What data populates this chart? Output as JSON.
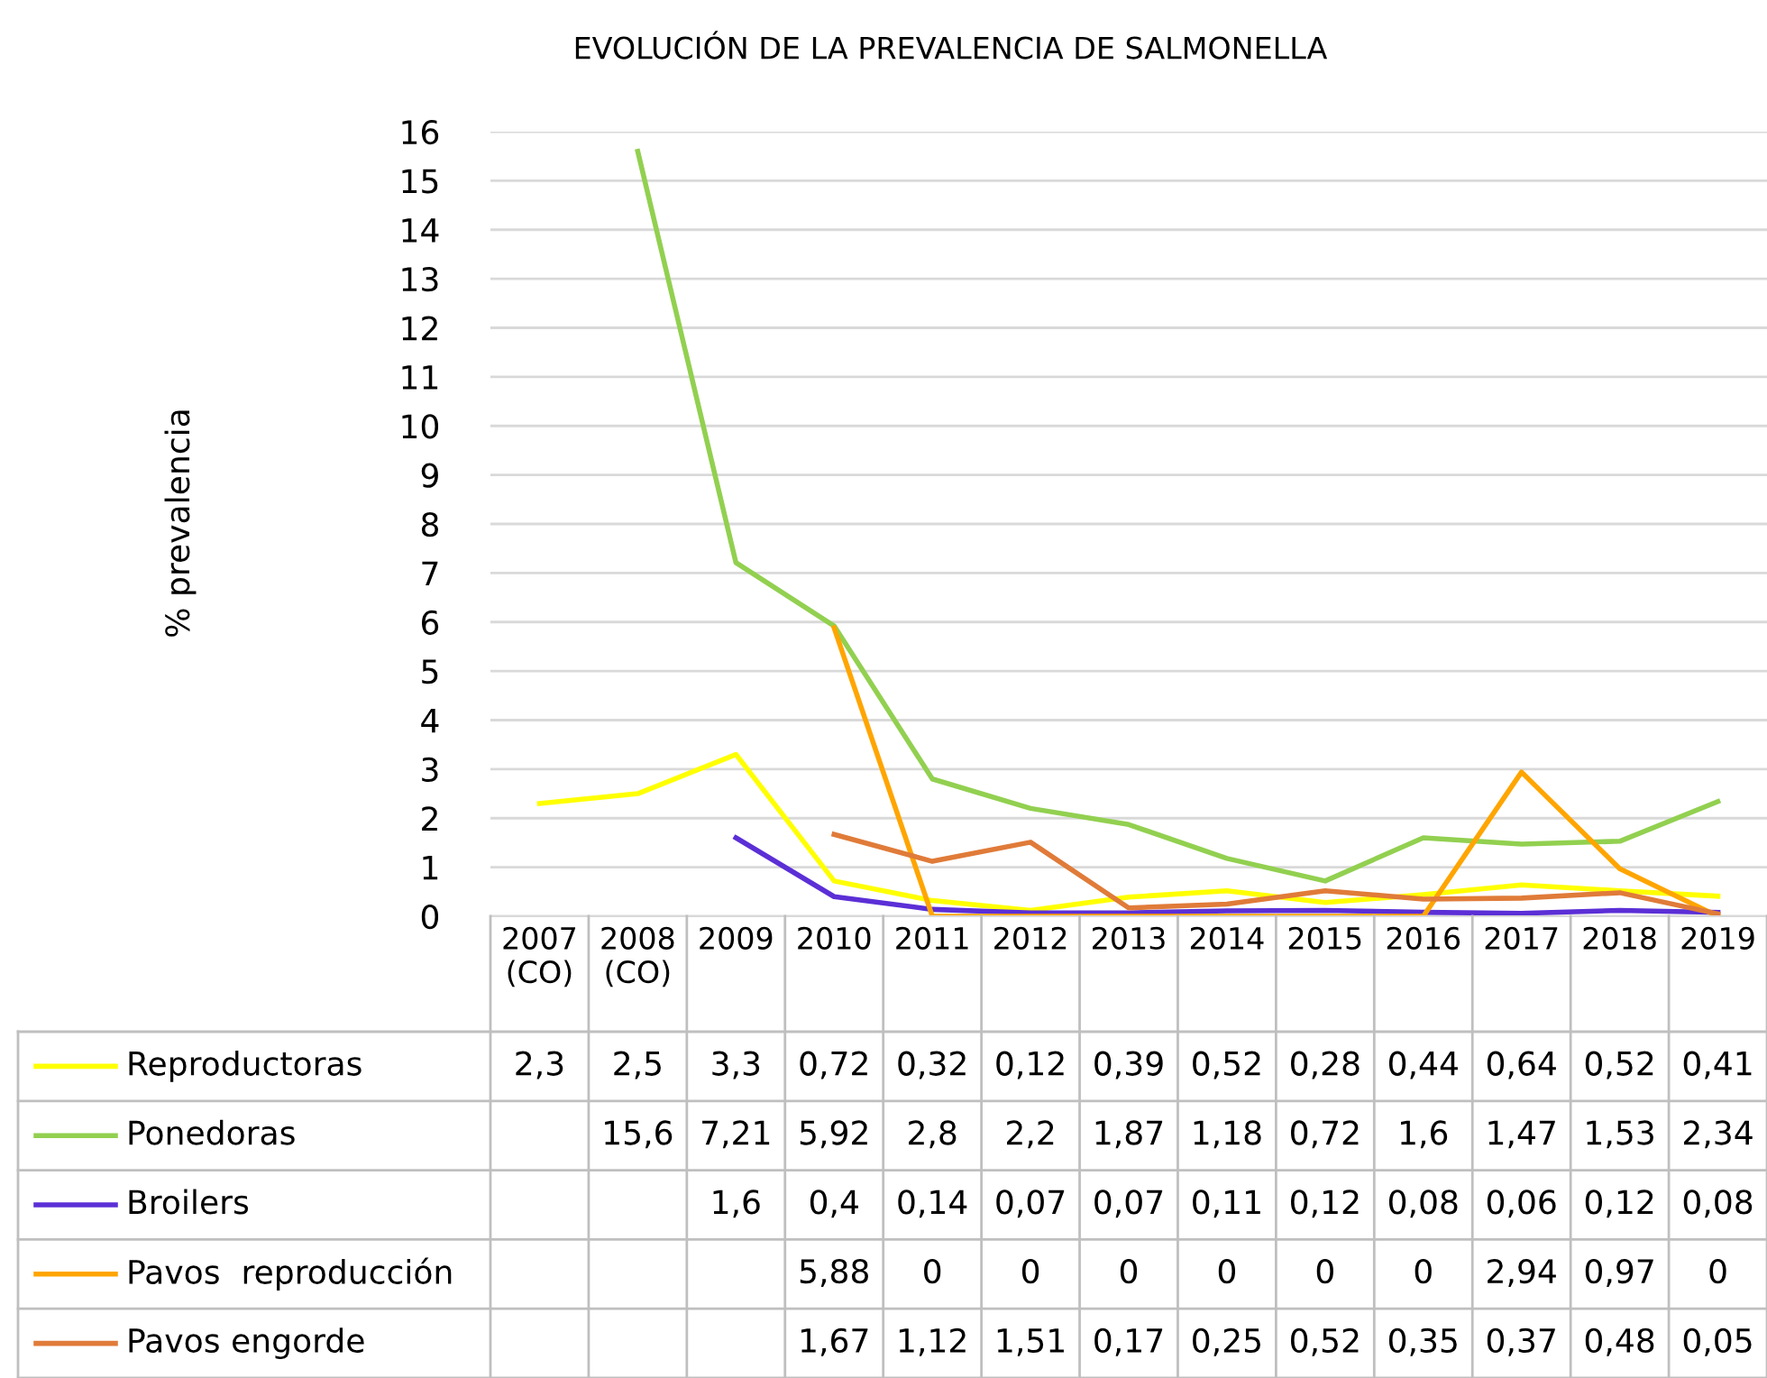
{
  "chart_data": {
    "type": "line",
    "title": "EVOLUCIÓN DE LA PREVALENCIA DE SALMONELLA",
    "annotations": [
      "% prevalencia"
    ],
    "categories": [
      "2007\n(CO)",
      "2008\n(CO)",
      "2009",
      "2010",
      "2011",
      "2012",
      "2013",
      "2014",
      "2015",
      "2016",
      "2017",
      "2018",
      "2019"
    ],
    "series": [
      {
        "name": "Reproductoras",
        "color": "#ffff00",
        "values": [
          2.3,
          2.5,
          3.3,
          0.72,
          0.32,
          0.12,
          0.39,
          0.52,
          0.28,
          0.44,
          0.64,
          0.52,
          0.41
        ],
        "value_labels": [
          "2,3",
          "2,5",
          "3,3",
          "0,72",
          "0,32",
          "0,12",
          "0,39",
          "0,52",
          "0,28",
          "0,44",
          "0,64",
          "0,52",
          "0,41"
        ]
      },
      {
        "name": "Ponedoras",
        "color": "#92d050",
        "values": [
          null,
          15.6,
          7.21,
          5.92,
          2.8,
          2.2,
          1.87,
          1.18,
          0.72,
          1.6,
          1.47,
          1.53,
          2.34
        ],
        "value_labels": [
          null,
          "15,6",
          "7,21",
          "5,92",
          "2,8",
          "2,2",
          "1,87",
          "1,18",
          "0,72",
          "1,6",
          "1,47",
          "1,53",
          "2,34"
        ]
      },
      {
        "name": "Broilers",
        "color": "#5b2fd6",
        "values": [
          null,
          null,
          1.6,
          0.4,
          0.14,
          0.07,
          0.07,
          0.11,
          0.12,
          0.08,
          0.06,
          0.12,
          0.08
        ],
        "value_labels": [
          null,
          null,
          "1,6",
          "0,4",
          "0,14",
          "0,07",
          "0,07",
          "0,11",
          "0,12",
          "0,08",
          "0,06",
          "0,12",
          "0,08"
        ]
      },
      {
        "name": "Pavos  reproducción",
        "color": "#ffa500",
        "values": [
          null,
          null,
          null,
          5.88,
          0,
          0,
          0,
          0,
          0,
          0,
          2.94,
          0.97,
          0
        ],
        "value_labels": [
          null,
          null,
          null,
          "5,88",
          "0",
          "0",
          "0",
          "0",
          "0",
          "0",
          "2,94",
          "0,97",
          "0"
        ]
      },
      {
        "name": "Pavos engorde",
        "color": "#e07b39",
        "values": [
          null,
          null,
          null,
          1.67,
          1.12,
          1.51,
          0.17,
          0.25,
          0.52,
          0.35,
          0.37,
          0.48,
          0.05
        ],
        "value_labels": [
          null,
          null,
          null,
          "1,67",
          "1,12",
          "1,51",
          "0,17",
          "0,25",
          "0,52",
          "0,35",
          "0,37",
          "0,48",
          "0,05"
        ]
      }
    ],
    "ylim": [
      0,
      16
    ],
    "yticks": [
      0,
      1,
      2,
      3,
      4,
      5,
      6,
      7,
      8,
      9,
      10,
      11,
      12,
      13,
      14,
      15,
      16
    ],
    "grid": "y",
    "legend": "bottom left",
    "marker": "none",
    "line_style": "solid"
  }
}
